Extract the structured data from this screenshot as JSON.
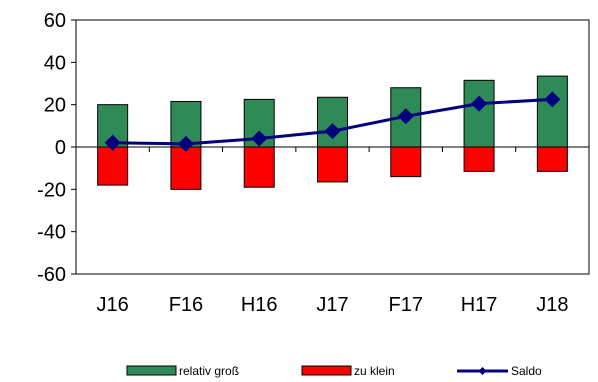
{
  "chart_data": {
    "type": "bar",
    "categories": [
      "J16",
      "F16",
      "H16",
      "J17",
      "F17",
      "H17",
      "J18"
    ],
    "series": [
      {
        "name": "relativ groß",
        "type": "bar",
        "values": [
          20,
          21.5,
          22.5,
          23.5,
          28,
          31.5,
          33.5
        ]
      },
      {
        "name": "zu klein",
        "type": "bar",
        "values": [
          -18,
          -20,
          -19,
          -16.5,
          -14,
          -11.5,
          -11.5
        ]
      },
      {
        "name": "Saldo",
        "type": "line",
        "values": [
          2,
          1.5,
          4,
          7.5,
          14.5,
          20.5,
          22.5
        ]
      }
    ],
    "ylim": [
      -60,
      60
    ],
    "yticks": [
      60,
      40,
      20,
      0,
      -20,
      -40,
      -60
    ],
    "ytick_labels": [
      "60",
      "40",
      "20",
      "0",
      "-20",
      "-40",
      "-60"
    ],
    "xlabel": "",
    "ylabel": "",
    "title": "",
    "grid": false,
    "legend_position": "bottom",
    "colors": {
      "relativ groß": "#2e8b57",
      "zu klein": "#ff0000",
      "Saldo": "#000080"
    }
  }
}
